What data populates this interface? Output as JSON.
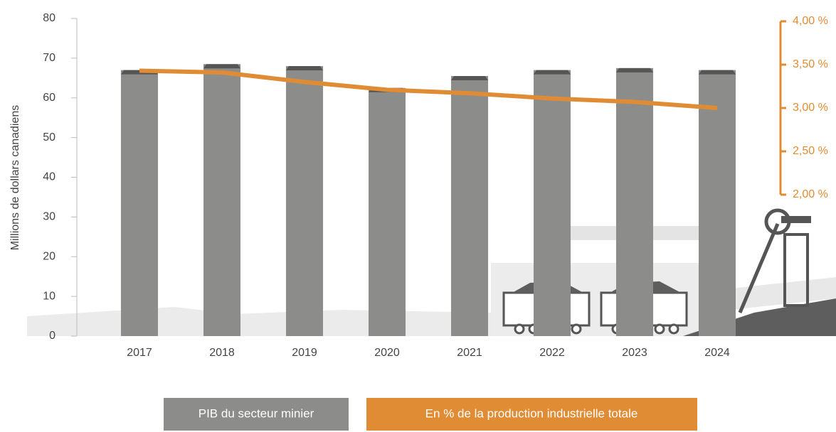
{
  "chart_data": {
    "type": "bar-line",
    "y_axis_label": "Millions de dollars canadiens",
    "categories": [
      "2017",
      "2018",
      "2019",
      "2020",
      "2021",
      "2022",
      "2023",
      "2024"
    ],
    "series": [
      {
        "name": "PIB du secteur minier",
        "color": "#8c8c8b",
        "type": "bar",
        "values": [
          67,
          68.5,
          68,
          62.5,
          65.5,
          67,
          67.5,
          67
        ]
      },
      {
        "name": "En % de la production industrielle totale",
        "color": "#e08c34",
        "type": "line",
        "axis": "y2",
        "values": [
          3.43,
          3.41,
          3.3,
          3.21,
          3.17,
          3.11,
          3.07,
          3.0
        ]
      }
    ],
    "ylim": [
      0,
      80
    ],
    "yticks": [
      0,
      10,
      20,
      30,
      40,
      50,
      60,
      70,
      80
    ],
    "y2lim": [
      2,
      4
    ],
    "y2ticks": [
      {
        "value": 2,
        "label": "2,00 %"
      },
      {
        "value": 2.5,
        "label": "2,50 %"
      },
      {
        "value": 3,
        "label": "3,00 %"
      },
      {
        "value": 3.5,
        "label": "3,50 %"
      },
      {
        "value": 4,
        "label": "4,00 %"
      }
    ],
    "grid": false
  }
}
